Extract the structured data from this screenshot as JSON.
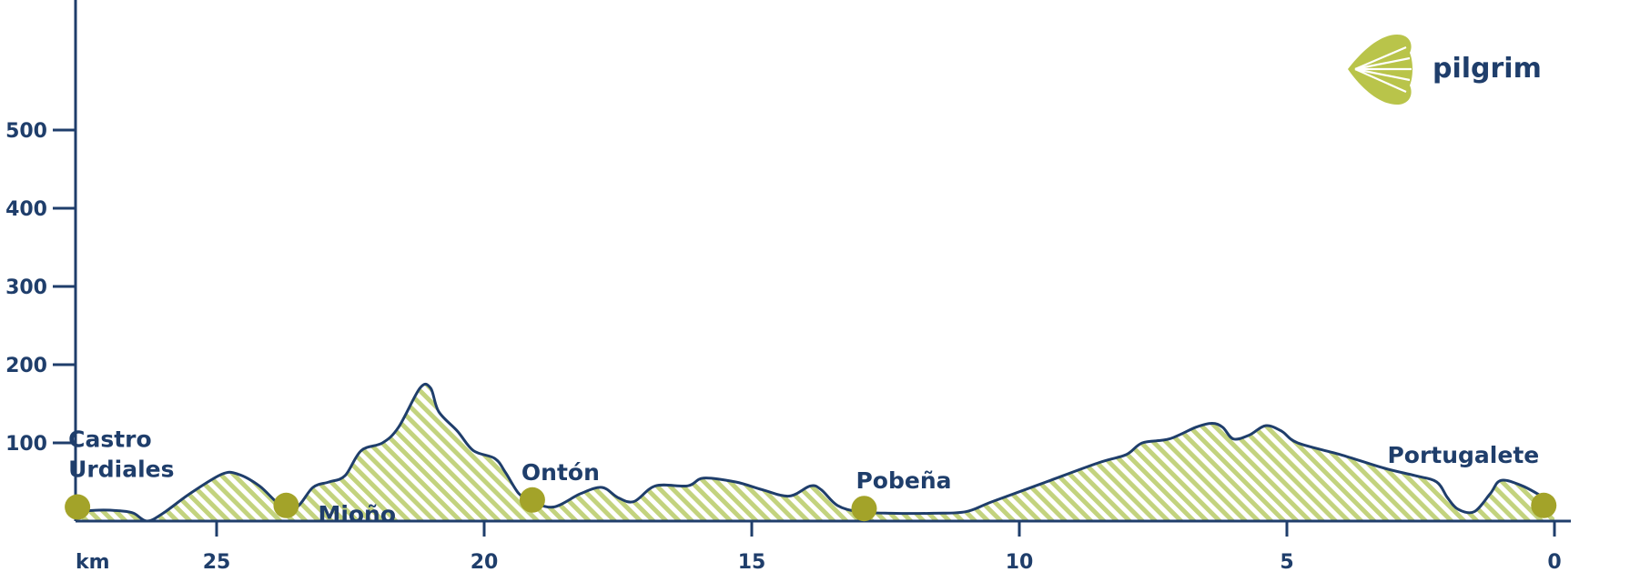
{
  "brand": {
    "name": "pilgrim"
  },
  "colors": {
    "line": "#1f3e6b",
    "fill": "#c3d37e",
    "marker": "#a3a329"
  },
  "chart_data": {
    "type": "area",
    "title": "",
    "xlabel": "km",
    "ylabel": "",
    "x_reversed": true,
    "xlim": [
      0,
      27.6
    ],
    "ylim": [
      0,
      650
    ],
    "x_ticks": [
      25,
      20,
      15,
      10,
      5,
      0
    ],
    "y_ticks": [
      100,
      200,
      300,
      400,
      500
    ],
    "profile": [
      [
        27.6,
        12
      ],
      [
        27.2,
        14
      ],
      [
        26.8,
        13
      ],
      [
        26.55,
        10
      ],
      [
        26.3,
        0
      ],
      [
        26.0,
        10
      ],
      [
        25.5,
        35
      ],
      [
        24.9,
        60
      ],
      [
        24.6,
        60
      ],
      [
        24.2,
        45
      ],
      [
        23.8,
        20
      ],
      [
        23.5,
        18
      ],
      [
        23.2,
        43
      ],
      [
        22.9,
        50
      ],
      [
        22.6,
        58
      ],
      [
        22.3,
        90
      ],
      [
        21.9,
        100
      ],
      [
        21.6,
        120
      ],
      [
        21.2,
        170
      ],
      [
        21.0,
        170
      ],
      [
        20.85,
        140
      ],
      [
        20.5,
        115
      ],
      [
        20.2,
        90
      ],
      [
        19.8,
        80
      ],
      [
        19.6,
        62
      ],
      [
        19.35,
        35
      ],
      [
        19.1,
        25
      ],
      [
        18.7,
        18
      ],
      [
        18.2,
        35
      ],
      [
        17.8,
        43
      ],
      [
        17.5,
        30
      ],
      [
        17.2,
        25
      ],
      [
        16.8,
        45
      ],
      [
        16.2,
        45
      ],
      [
        15.9,
        55
      ],
      [
        15.3,
        50
      ],
      [
        14.8,
        40
      ],
      [
        14.3,
        32
      ],
      [
        13.9,
        45
      ],
      [
        13.7,
        40
      ],
      [
        13.4,
        20
      ],
      [
        13.0,
        12
      ],
      [
        12.4,
        10
      ],
      [
        11.6,
        10
      ],
      [
        11.0,
        12
      ],
      [
        10.5,
        25
      ],
      [
        9.5,
        50
      ],
      [
        8.5,
        75
      ],
      [
        8.0,
        85
      ],
      [
        7.7,
        100
      ],
      [
        7.2,
        105
      ],
      [
        6.7,
        120
      ],
      [
        6.4,
        125
      ],
      [
        6.2,
        120
      ],
      [
        6.0,
        105
      ],
      [
        5.7,
        110
      ],
      [
        5.4,
        122
      ],
      [
        5.1,
        115
      ],
      [
        4.8,
        100
      ],
      [
        4.0,
        85
      ],
      [
        3.2,
        68
      ],
      [
        2.6,
        58
      ],
      [
        2.2,
        50
      ],
      [
        2.0,
        30
      ],
      [
        1.8,
        15
      ],
      [
        1.5,
        12
      ],
      [
        1.2,
        35
      ],
      [
        1.0,
        52
      ],
      [
        0.6,
        45
      ],
      [
        0.2,
        30
      ],
      [
        0.0,
        20
      ]
    ],
    "stops": [
      {
        "name": "Castro Urdiales",
        "lines": [
          "Castro",
          "Urdiales"
        ],
        "km": 27.6,
        "alt": 18
      },
      {
        "name": "Mioño",
        "lines": [
          "Mioño"
        ],
        "km": 23.7,
        "alt": 20
      },
      {
        "name": "Ontón",
        "lines": [
          "Ontón"
        ],
        "km": 19.1,
        "alt": 27
      },
      {
        "name": "Pobeña",
        "lines": [
          "Pobeña"
        ],
        "km": 12.9,
        "alt": 16
      },
      {
        "name": "Portugalete",
        "lines": [
          "Portugalete"
        ],
        "km": 0.2,
        "alt": 20
      }
    ]
  }
}
